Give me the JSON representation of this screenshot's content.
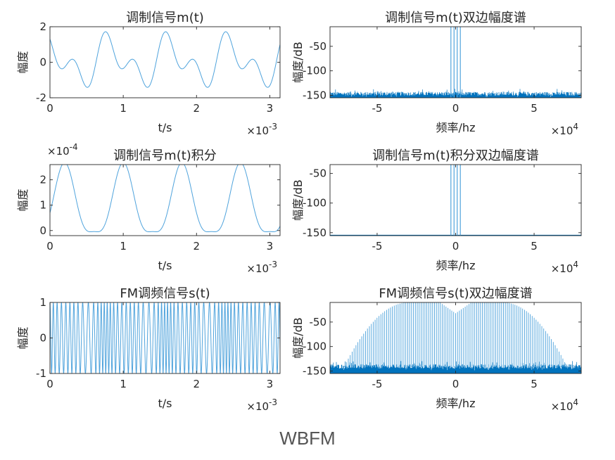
{
  "caption": "WBFM",
  "colors": {
    "line": "#0072bd",
    "thin": "#4fa3dc",
    "axis": "#262626"
  },
  "chart_data": [
    {
      "type": "line",
      "title": "调制信号m(t)",
      "xlabel": "t/s",
      "ylabel": "幅度",
      "xlim": [
        0,
        3.14
      ],
      "ylim": [
        -2,
        2
      ],
      "xticks": [
        0,
        1,
        2,
        3
      ],
      "yticks": [
        -2,
        0,
        2
      ],
      "x_exponent": "-3",
      "series": [
        {
          "signal": "message",
          "x_range": [
            0,
            3.14
          ]
        }
      ]
    },
    {
      "type": "line",
      "title": "调制信号m(t)双边幅度谱",
      "xlabel": "频率/hz",
      "ylabel": "幅度/dB",
      "xlim": [
        -8,
        8
      ],
      "ylim": [
        -155,
        -10
      ],
      "xticks": [
        -5,
        0,
        5
      ],
      "yticks": [
        -150,
        -100,
        -50
      ],
      "x_exponent": "4",
      "series": [
        {
          "signal": "spectrum_message",
          "noise_floor": -148,
          "peaks": [
            -0.3,
            -0.1,
            0.1,
            0.3
          ]
        }
      ]
    },
    {
      "type": "line",
      "title": "调制信号m(t)积分",
      "xlabel": "t/s",
      "ylabel": "幅度",
      "xlim": [
        0,
        3.14
      ],
      "ylim": [
        -0.2,
        2.6
      ],
      "xticks": [
        0,
        1,
        2,
        3
      ],
      "yticks": [
        0,
        1,
        2
      ],
      "x_exponent": "-3",
      "y_exponent": "-4",
      "series": [
        {
          "signal": "integral",
          "x_range": [
            0,
            3.14
          ]
        }
      ]
    },
    {
      "type": "line",
      "title": "调制信号m(t)积分双边幅度谱",
      "xlabel": "频率/hz",
      "ylabel": "幅度/dB",
      "xlim": [
        -8,
        8
      ],
      "ylim": [
        -155,
        -35
      ],
      "xticks": [
        -5,
        0,
        5
      ],
      "yticks": [
        -150,
        -100,
        -50
      ],
      "x_exponent": "4",
      "series": [
        {
          "signal": "spectrum_integral",
          "noise_floor": -155,
          "peaks": [
            -0.3,
            -0.1,
            0.1,
            0.3
          ]
        }
      ]
    },
    {
      "type": "line",
      "title": "FM调频信号s(t)",
      "xlabel": "t/s",
      "ylabel": "幅度",
      "xlim": [
        0,
        3.14
      ],
      "ylim": [
        -1,
        1
      ],
      "xticks": [
        0,
        1,
        2,
        3
      ],
      "yticks": [
        -1,
        0,
        1
      ],
      "x_exponent": "-3",
      "series": [
        {
          "signal": "fm",
          "x_range": [
            0,
            3.14
          ]
        }
      ]
    },
    {
      "type": "line",
      "title": "FM调频信号s(t)双边幅度谱",
      "xlabel": "频率/hz",
      "ylabel": "幅度/dB",
      "xlim": [
        -8,
        8
      ],
      "ylim": [
        -155,
        -10
      ],
      "xticks": [
        -5,
        0,
        5
      ],
      "yticks": [
        -150,
        -100,
        -50
      ],
      "x_exponent": "4",
      "series": [
        {
          "signal": "spectrum_fm",
          "noise_floor": -142,
          "envelope_max": -10,
          "envelope_center_dip": -32
        }
      ]
    }
  ]
}
